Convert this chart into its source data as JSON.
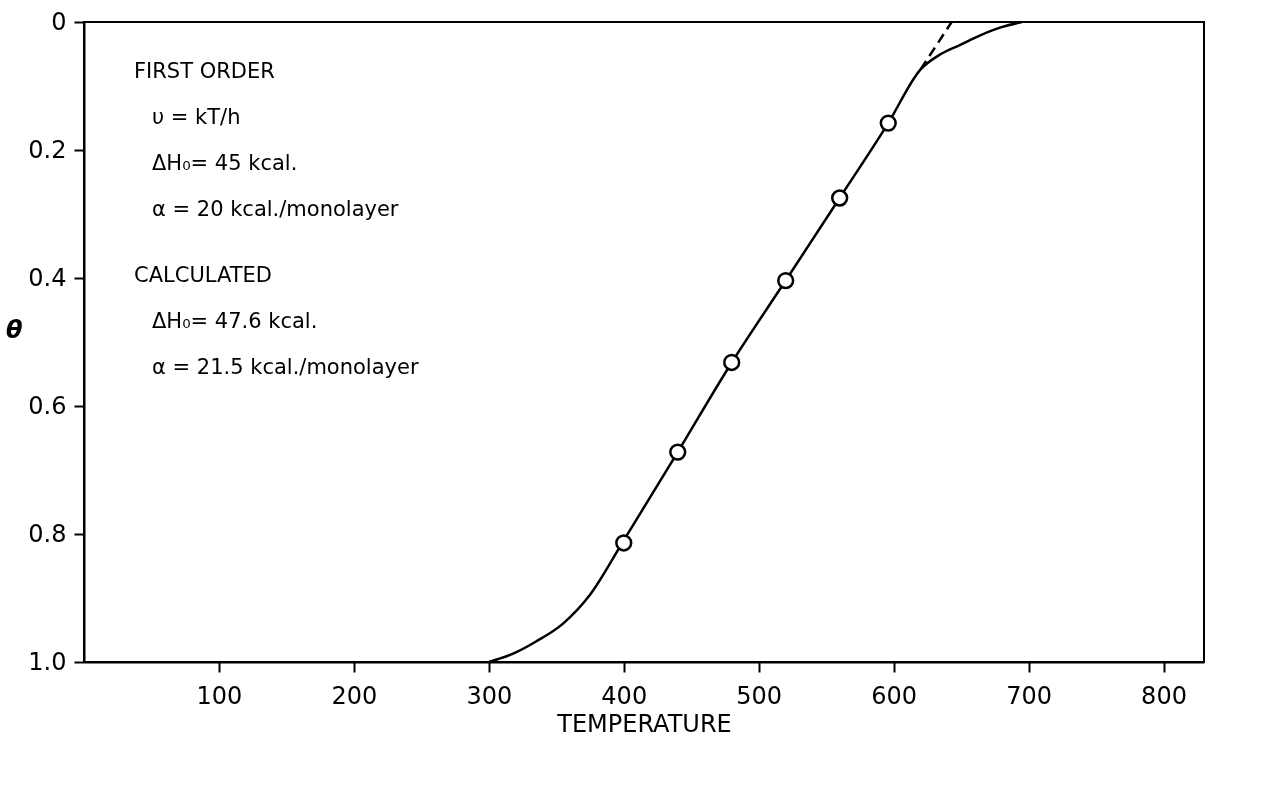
{
  "chart_data": {
    "type": "line",
    "xlabel": "TEMPERATURE",
    "ylabel": "θ",
    "xlim": [
      0,
      830
    ],
    "xticks": [
      100,
      200,
      300,
      400,
      500,
      600,
      700,
      800
    ],
    "ylim": [
      1,
      0
    ],
    "yticks": [
      0,
      0.2,
      0.4,
      0.6,
      0.8,
      {
        "value": 1,
        "label": "1.0"
      }
    ],
    "grid": false,
    "series": [
      {
        "color": "#000000",
        "line_style": "solid",
        "x": [
          300,
          320,
          335,
          355,
          375,
          400,
          440,
          480,
          520,
          560,
          596,
          620,
          635,
          649,
          665,
          680,
          695
        ],
        "values": [
          1.0,
          0.985,
          0.968,
          0.94,
          0.895,
          0.81,
          0.672,
          0.532,
          0.404,
          0.275,
          0.158,
          0.074,
          0.05,
          0.036,
          0.02,
          0.008,
          0.0
        ]
      },
      {
        "type": "line",
        "color": "#000000",
        "line_style": "dashed",
        "x": [
          620,
          643
        ],
        "values": [
          0.074,
          0.0
        ]
      },
      {
        "type": "scatter",
        "color": "#000000",
        "marker": "circle",
        "x": [
          400,
          440,
          480,
          520,
          560,
          596
        ],
        "values": [
          0.814,
          0.672,
          0.532,
          0.404,
          0.275,
          0.158
        ]
      }
    ],
    "annotations": [
      "FIRST  ORDER",
      "υ = kT/h",
      "ΔH₀= 45  kcal.",
      "α =  20 kcal./monolayer",
      "CALCULATED",
      "ΔH₀= 47.6 kcal.",
      "α = 21.5 kcal./monolayer"
    ]
  }
}
